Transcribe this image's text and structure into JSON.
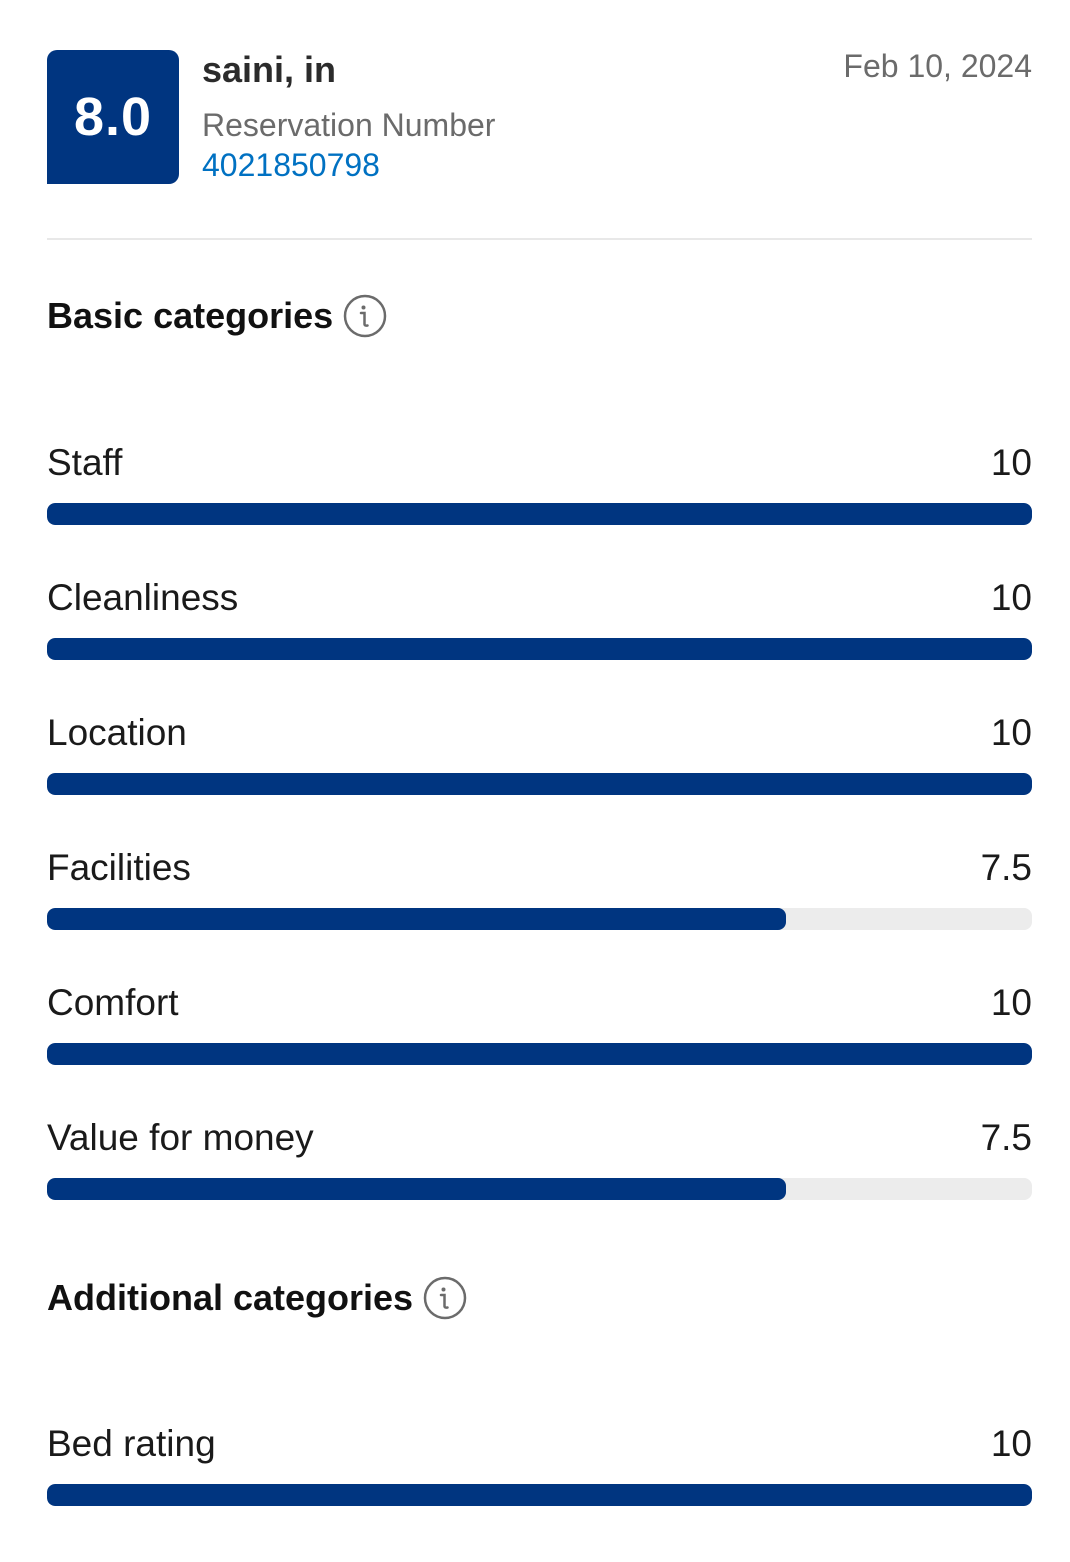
{
  "review": {
    "score": "8.0",
    "guest_name": "saini, in",
    "reservation_label": "Reservation Number",
    "reservation_number": "4021850798",
    "date": "Feb 10, 2024"
  },
  "basic_categories": {
    "title": "Basic categories",
    "items": [
      {
        "label": "Staff",
        "value": "10",
        "fraction": 1.0
      },
      {
        "label": "Cleanliness",
        "value": "10",
        "fraction": 1.0
      },
      {
        "label": "Location",
        "value": "10",
        "fraction": 1.0
      },
      {
        "label": "Facilities",
        "value": "7.5",
        "fraction": 0.75
      },
      {
        "label": "Comfort",
        "value": "10",
        "fraction": 1.0
      },
      {
        "label": "Value for money",
        "value": "7.5",
        "fraction": 0.75
      }
    ]
  },
  "additional_categories": {
    "title": "Additional categories",
    "items": [
      {
        "label": "Bed rating",
        "value": "10",
        "fraction": 1.0
      }
    ]
  },
  "colors": {
    "brand": "#003580",
    "link": "#0071c2",
    "track": "#ececec"
  },
  "icons": {
    "section_info": "info-icon"
  }
}
